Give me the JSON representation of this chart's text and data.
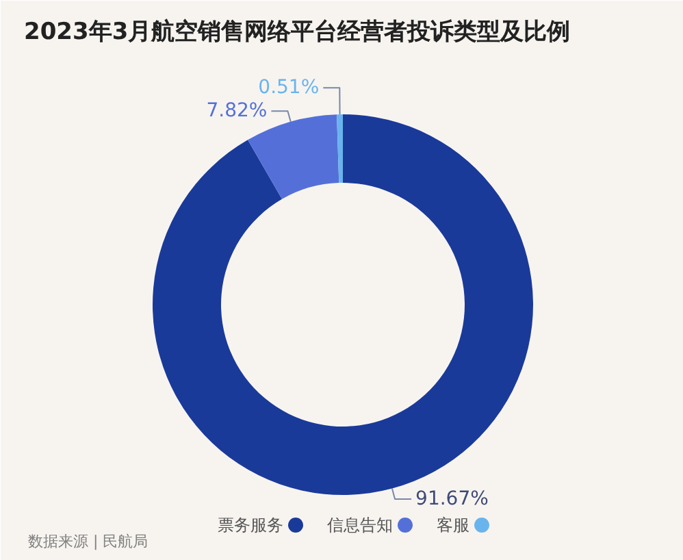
{
  "chart_data": {
    "type": "donut",
    "title": "2023年3月航空销售网络平台经营者投诉类型及比例",
    "categories": [
      "票务服务",
      "信息告知",
      "客服"
    ],
    "values": [
      91.67,
      7.82,
      0.51
    ],
    "colors": [
      "#1a3a9a",
      "#5470d8",
      "#6ab4ee"
    ],
    "value_labels": [
      "91.67%",
      "7.82%",
      "0.51%"
    ],
    "legend": "bottom",
    "annotations": [
      "数据来源 | 民航局"
    ]
  }
}
